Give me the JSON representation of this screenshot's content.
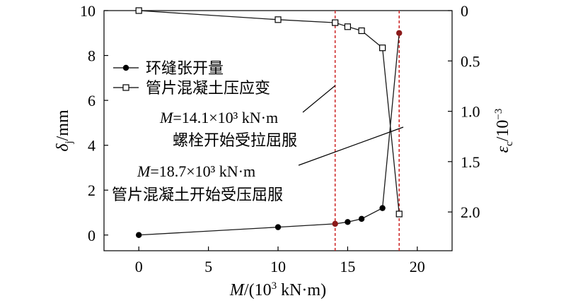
{
  "chart_data": {
    "type": "line",
    "xlabel": "M/(10³ kN·m)",
    "ylabel_left": "δj/mm",
    "ylabel_right": "εc/10⁻³",
    "xlim": [
      -2.5,
      22.5
    ],
    "ylim_left": [
      -0.7,
      10
    ],
    "ylim_right": [
      2.385,
      0
    ],
    "xticks": [
      "0",
      "5",
      "10",
      "15",
      "20"
    ],
    "yticks_left": [
      "0",
      "2",
      "4",
      "6",
      "8",
      "10"
    ],
    "yticks_right": [
      "0",
      "0.5",
      "1.0",
      "1.5",
      "2.0"
    ],
    "grid": false,
    "legend_position": "upper-left",
    "series": [
      {
        "name": "环缝张开量",
        "axis": "left",
        "marker": "filled-circle",
        "x": [
          0,
          10,
          14.1,
          15,
          16,
          17.5,
          18.7
        ],
        "y": [
          0,
          0.35,
          0.5,
          0.58,
          0.72,
          1.2,
          9.0
        ]
      },
      {
        "name": "管片混凝土压应变",
        "axis": "right",
        "marker": "open-square",
        "x": [
          0,
          10,
          14.1,
          15,
          16,
          17.5,
          18.7
        ],
        "y": [
          0,
          0.09,
          0.12,
          0.16,
          0.2,
          0.37,
          2.02
        ]
      }
    ],
    "vlines": [
      14.1,
      18.7
    ],
    "annotations": [
      {
        "line1_var": "M",
        "line1_rest": "=14.1×10³ kN·m",
        "line2": "螺栓开始受拉屈服"
      },
      {
        "line1_var": "M",
        "line1_rest": "=18.7×10³ kN·m",
        "line2": "管片混凝土开始受压屈服"
      }
    ]
  },
  "colors": {
    "axis": "#000000",
    "series_line": "#1a1a1a",
    "vline": "#cc2222",
    "highlight_marker": "#8b1a1a"
  }
}
